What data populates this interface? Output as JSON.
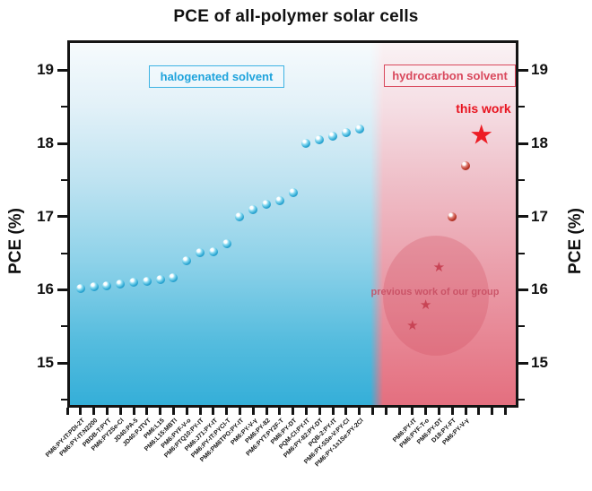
{
  "title": "PCE of all-polymer solar cells",
  "y_axis": {
    "label": "PCE (%)"
  },
  "regions": [
    {
      "id": "halogenated",
      "label": "halogenated solvent",
      "color": "#1ea3dc"
    },
    {
      "id": "hydrocarbon",
      "label": "hydrocarbon solvent",
      "color": "#d9485c"
    }
  ],
  "annotations": {
    "this_work": "this work",
    "previous_work": "previous work of our group"
  },
  "chart_data": {
    "type": "scatter",
    "title": "PCE of all-polymer solar cells",
    "ylabel": "PCE (%)",
    "ylim": [
      14.4,
      19.4
    ],
    "yticks": [
      15,
      16,
      17,
      18,
      19
    ],
    "yticks_minor": [
      14.5,
      15.5,
      16.5,
      17.5,
      18.5
    ],
    "grid": false,
    "series": [
      {
        "name": "halogenated solvent",
        "marker": "sphere",
        "color": "#2fa9d4",
        "points": [
          {
            "label": "PM6:PY-IT:PDI-2T",
            "pce": 16.02,
            "slot": 1
          },
          {
            "label": "PM6:PY-IT:N2200",
            "pce": 16.04,
            "slot": 2
          },
          {
            "label": "PBDB-T:PYT",
            "pce": 16.05,
            "slot": 3
          },
          {
            "label": "PM6:PY2Se-Cl",
            "pce": 16.08,
            "slot": 4
          },
          {
            "label": "JD40:PA-5",
            "pce": 16.1,
            "slot": 5
          },
          {
            "label": "JD40:PJTVT",
            "pce": 16.12,
            "slot": 6
          },
          {
            "label": "PM6:L15",
            "pce": 16.14,
            "slot": 7
          },
          {
            "label": "PM6:L15:MBTI",
            "pce": 16.16,
            "slot": 8
          },
          {
            "label": "PM6:PYF-V-o",
            "pce": 16.4,
            "slot": 9
          },
          {
            "label": "PM6:PTQ10:PY-IT",
            "pce": 16.51,
            "slot": 10
          },
          {
            "label": "PM6:J71:PY-IT",
            "pce": 16.52,
            "slot": 11
          },
          {
            "label": "PM6:PY-IT:PYCl-T",
            "pce": 16.63,
            "slot": 12
          },
          {
            "label": "PM6:PM6TPO:PY-IT",
            "pce": 17.0,
            "slot": 13
          },
          {
            "label": "PM6:PY-V-γ",
            "pce": 17.1,
            "slot": 14
          },
          {
            "label": "PM6:PY-82",
            "pce": 17.17,
            "slot": 15
          },
          {
            "label": "PM6:PYT:PY2F-T",
            "pce": 17.22,
            "slot": 16
          },
          {
            "label": "PM6:PY-DT",
            "pce": 17.33,
            "slot": 17
          },
          {
            "label": "PQM-Cl:PY-IT",
            "pce": 18.0,
            "slot": 18
          },
          {
            "label": "PM6:PY-82:PY-DT",
            "pce": 18.05,
            "slot": 19
          },
          {
            "label": "PQB-2:PY-IT",
            "pce": 18.1,
            "slot": 20
          },
          {
            "label": "PM6:PY-SSe-V:PY-Cl",
            "pce": 18.15,
            "slot": 21
          },
          {
            "label": "PM6:PY-1s1Se:PY-2Cl",
            "pce": 18.2,
            "slot": 22
          }
        ]
      },
      {
        "name": "hydrocarbon solvent",
        "color": "#c84455",
        "points": [
          {
            "label": "PM6:PY-IT",
            "pce": 15.5,
            "slot": 26,
            "marker": "star"
          },
          {
            "label": "PM6:PYF-T-o",
            "pce": 15.78,
            "slot": 27,
            "marker": "star"
          },
          {
            "label": "PM6:PY-DT",
            "pce": 16.3,
            "slot": 28,
            "marker": "star"
          },
          {
            "label": "D18:PY-FT",
            "pce": 17.0,
            "slot": 29,
            "marker": "sphere"
          },
          {
            "label": "PM6:PY-V-γ",
            "pce": 17.7,
            "slot": 30,
            "marker": "sphere"
          }
        ]
      },
      {
        "name": "this work",
        "color": "#ed1c24",
        "points": [
          {
            "label": "this work",
            "pce": 18.1,
            "slot": 31.2,
            "marker": "big-star"
          }
        ]
      }
    ]
  }
}
